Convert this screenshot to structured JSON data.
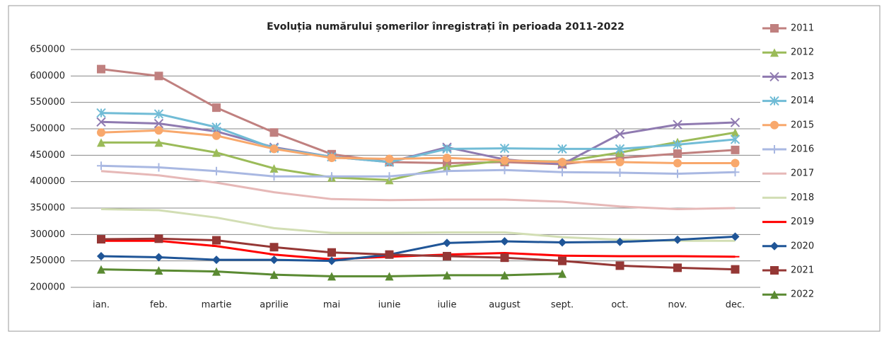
{
  "chart_data": {
    "type": "line",
    "title": "Evoluția numărului  șomerilor înregistrați în perioada 2011-2022",
    "categories": [
      "ian.",
      "feb.",
      "martie",
      "aprilie",
      "mai",
      "iunie",
      "iulie",
      "august",
      "sept.",
      "oct.",
      "nov.",
      "dec."
    ],
    "ylim": [
      200000,
      650000
    ],
    "yticks": [
      200000,
      250000,
      300000,
      350000,
      400000,
      450000,
      500000,
      550000,
      600000,
      650000
    ],
    "grid": true,
    "legend": "right",
    "series": [
      {
        "name": "2011",
        "color": "#c0807f",
        "marker": "square",
        "values": [
          613000,
          600000,
          540000,
          493000,
          452000,
          437000,
          435000,
          437000,
          433000,
          445000,
          453000,
          460000
        ]
      },
      {
        "name": "2012",
        "color": "#9bbb59",
        "marker": "triangle",
        "values": [
          474000,
          474000,
          455000,
          425000,
          408000,
          403000,
          428000,
          440000,
          438000,
          455000,
          475000,
          493000
        ]
      },
      {
        "name": "2013",
        "color": "#8f7ab0",
        "marker": "x",
        "values": [
          513000,
          510000,
          495000,
          465000,
          447000,
          437000,
          465000,
          442000,
          433000,
          490000,
          508000,
          512000
        ]
      },
      {
        "name": "2014",
        "color": "#71bcd6",
        "marker": "star",
        "values": [
          530000,
          528000,
          503000,
          463000,
          447000,
          437000,
          462000,
          463000,
          462000,
          462000,
          470000,
          480000
        ]
      },
      {
        "name": "2015",
        "color": "#f8a86c",
        "marker": "circle",
        "values": [
          493000,
          497000,
          487000,
          462000,
          445000,
          443000,
          445000,
          440000,
          437000,
          437000,
          435000,
          435000
        ]
      },
      {
        "name": "2016",
        "color": "#a9b8e2",
        "marker": "plus",
        "values": [
          430000,
          427000,
          420000,
          410000,
          410000,
          410000,
          420000,
          422000,
          418000,
          417000,
          415000,
          418000
        ]
      },
      {
        "name": "2017",
        "color": "#e6b8b7",
        "marker": "none",
        "values": [
          420000,
          412000,
          398000,
          380000,
          367000,
          365000,
          366000,
          366000,
          362000,
          353000,
          348000,
          350000
        ]
      },
      {
        "name": "2018",
        "color": "#d2deb4",
        "marker": "none",
        "values": [
          348000,
          346000,
          332000,
          312000,
          303000,
          303000,
          304000,
          304000,
          295000,
          290000,
          288000,
          288000
        ]
      },
      {
        "name": "2019",
        "color": "#ff0000",
        "marker": "dash",
        "values": [
          288000,
          288000,
          278000,
          262000,
          253000,
          258000,
          262000,
          265000,
          260000,
          259000,
          259000,
          258000
        ]
      },
      {
        "name": "2020",
        "color": "#1f5597",
        "marker": "diamond",
        "values": [
          259000,
          257000,
          252000,
          252000,
          250000,
          262000,
          284000,
          287000,
          285000,
          286000,
          290000,
          296000
        ]
      },
      {
        "name": "2021",
        "color": "#953735",
        "marker": "square",
        "values": [
          291000,
          292000,
          289000,
          276000,
          266000,
          262000,
          259000,
          256000,
          250000,
          241000,
          237000,
          234000
        ]
      },
      {
        "name": "2022",
        "color": "#5a8a32",
        "marker": "triangle",
        "values": [
          234000,
          232000,
          230000,
          224000,
          221000,
          221000,
          223000,
          223000,
          226000,
          null,
          null,
          null
        ]
      }
    ]
  }
}
